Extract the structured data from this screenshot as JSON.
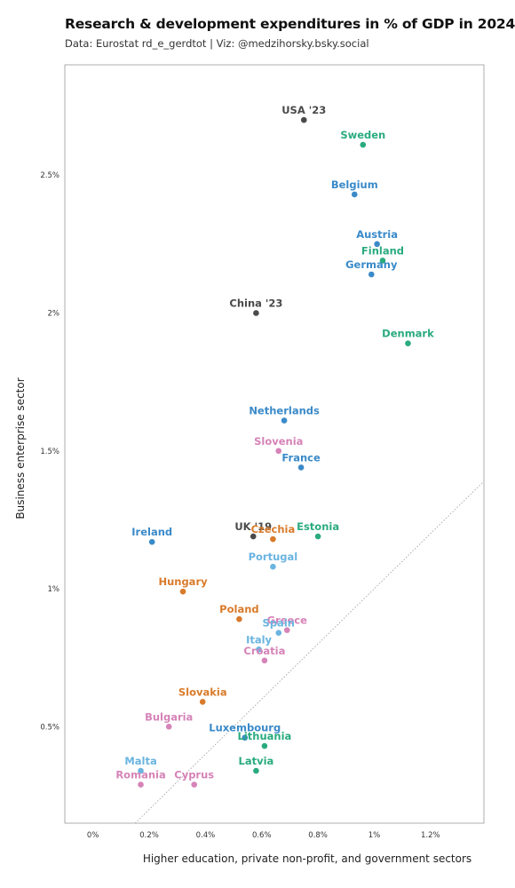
{
  "chart_data": {
    "type": "scatter",
    "title": "Research & development expenditures in % of GDP in 2024",
    "subtitle": "Data: Eurostat rd_e_gerdtot  |  Viz: @medzihorsky.bsky.social",
    "xlabel": "Higher education, private non-profit, and government sectors",
    "ylabel": "Business enterprise sector",
    "xlim": [
      -0.1,
      1.39
    ],
    "ylim": [
      0.15,
      2.9
    ],
    "x_ticks": [
      0,
      0.2,
      0.4,
      0.6,
      0.8,
      1.0,
      1.2
    ],
    "x_tick_labels": [
      "0%",
      "0.2%",
      "0.4%",
      "0.6%",
      "0.8%",
      "1%",
      "1.2%"
    ],
    "y_ticks": [
      0.5,
      1.0,
      1.5,
      2.0,
      2.5
    ],
    "y_tick_labels": [
      "0.5%",
      "1%",
      "1.5%",
      "2%",
      "2.5%"
    ],
    "grid": false,
    "reference_line": "diagonal dotted line y = x",
    "colors": {
      "grey": "#4a4a4a",
      "blue": "#3a8ac9",
      "green": "#2aab7e",
      "orange": "#d97b2b",
      "lightblue": "#6ab4e0",
      "pink": "#d683b8"
    },
    "points": [
      {
        "label": "USA '23",
        "x": 0.75,
        "y": 2.7,
        "color": "grey"
      },
      {
        "label": "Sweden",
        "x": 0.96,
        "y": 2.61,
        "color": "green"
      },
      {
        "label": "Belgium",
        "x": 0.93,
        "y": 2.43,
        "color": "blue"
      },
      {
        "label": "Austria",
        "x": 1.01,
        "y": 2.25,
        "color": "blue"
      },
      {
        "label": "Finland",
        "x": 1.03,
        "y": 2.19,
        "color": "green"
      },
      {
        "label": "Germany",
        "x": 0.99,
        "y": 2.14,
        "color": "blue"
      },
      {
        "label": "China '23",
        "x": 0.58,
        "y": 2.0,
        "color": "grey"
      },
      {
        "label": "Denmark",
        "x": 1.12,
        "y": 1.89,
        "color": "green"
      },
      {
        "label": "Netherlands",
        "x": 0.68,
        "y": 1.61,
        "color": "blue"
      },
      {
        "label": "Slovenia",
        "x": 0.66,
        "y": 1.5,
        "color": "pink"
      },
      {
        "label": "France",
        "x": 0.74,
        "y": 1.44,
        "color": "blue"
      },
      {
        "label": "Ireland",
        "x": 0.21,
        "y": 1.17,
        "color": "blue"
      },
      {
        "label": "UK '19",
        "x": 0.57,
        "y": 1.19,
        "color": "grey"
      },
      {
        "label": "Czechia",
        "x": 0.64,
        "y": 1.18,
        "color": "orange"
      },
      {
        "label": "Estonia",
        "x": 0.8,
        "y": 1.19,
        "color": "green"
      },
      {
        "label": "Portugal",
        "x": 0.64,
        "y": 1.08,
        "color": "lightblue"
      },
      {
        "label": "Hungary",
        "x": 0.32,
        "y": 0.99,
        "color": "orange"
      },
      {
        "label": "Poland",
        "x": 0.52,
        "y": 0.89,
        "color": "orange"
      },
      {
        "label": "Greece",
        "x": 0.69,
        "y": 0.85,
        "color": "pink"
      },
      {
        "label": "Spain",
        "x": 0.66,
        "y": 0.84,
        "color": "lightblue"
      },
      {
        "label": "Italy",
        "x": 0.59,
        "y": 0.78,
        "color": "lightblue"
      },
      {
        "label": "Croatia",
        "x": 0.61,
        "y": 0.74,
        "color": "pink"
      },
      {
        "label": "Slovakia",
        "x": 0.39,
        "y": 0.59,
        "color": "orange"
      },
      {
        "label": "Bulgaria",
        "x": 0.27,
        "y": 0.5,
        "color": "pink"
      },
      {
        "label": "Luxembourg",
        "x": 0.54,
        "y": 0.46,
        "color": "blue"
      },
      {
        "label": "Lithuania",
        "x": 0.61,
        "y": 0.43,
        "color": "green"
      },
      {
        "label": "Malta",
        "x": 0.17,
        "y": 0.34,
        "color": "lightblue"
      },
      {
        "label": "Latvia",
        "x": 0.58,
        "y": 0.34,
        "color": "green"
      },
      {
        "label": "Romania",
        "x": 0.17,
        "y": 0.29,
        "color": "pink"
      },
      {
        "label": "Cyprus",
        "x": 0.36,
        "y": 0.29,
        "color": "pink"
      }
    ]
  }
}
